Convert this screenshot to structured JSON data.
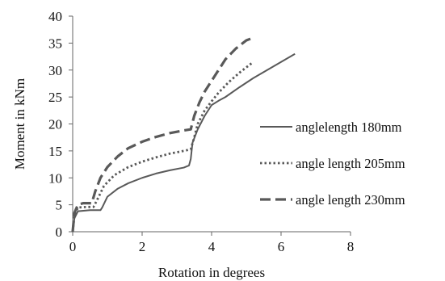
{
  "chart_data": {
    "type": "line",
    "title": "",
    "xlabel": "Rotation in degrees",
    "ylabel": "Moment in kNm",
    "xlim": [
      0,
      8
    ],
    "ylim": [
      0,
      40
    ],
    "xticks": [
      0,
      2,
      4,
      6,
      8
    ],
    "yticks": [
      0,
      5,
      10,
      15,
      20,
      25,
      30,
      35,
      40
    ],
    "grid": false,
    "legend": "right",
    "series": [
      {
        "name": "anglelength 180mm",
        "style": "solid",
        "color": "#595959",
        "x": [
          0,
          0.05,
          0.15,
          0.5,
          0.8,
          0.85,
          1.0,
          1.3,
          1.6,
          2.0,
          2.4,
          2.8,
          3.2,
          3.35,
          3.4,
          3.45,
          3.6,
          3.8,
          4.0,
          4.2,
          4.4,
          4.8,
          5.2,
          5.6,
          6.0,
          6.4
        ],
        "y": [
          0,
          2.5,
          3.8,
          4.0,
          4.0,
          4.5,
          6.5,
          8.0,
          9.0,
          10.0,
          10.8,
          11.4,
          11.9,
          12.3,
          13.5,
          16.5,
          19.0,
          21.5,
          23.5,
          24.3,
          25.0,
          26.8,
          28.5,
          30.0,
          31.5,
          33.0
        ]
      },
      {
        "name": "angle length 205mm",
        "style": "dotted",
        "color": "#595959",
        "x": [
          0,
          0.05,
          0.15,
          0.4,
          0.6,
          0.75,
          0.9,
          1.2,
          1.6,
          2.0,
          2.4,
          2.8,
          3.2,
          3.4,
          3.5,
          3.6,
          3.8,
          4.0,
          4.2,
          4.5,
          4.8,
          5.2
        ],
        "y": [
          0,
          3.0,
          4.5,
          4.6,
          4.6,
          6.5,
          8.5,
          10.5,
          12.0,
          13.0,
          13.8,
          14.5,
          15.0,
          15.3,
          17.5,
          20.0,
          22.5,
          24.2,
          25.8,
          27.8,
          29.5,
          31.5
        ]
      },
      {
        "name": "angle length 230mm",
        "style": "dashed",
        "color": "#595959",
        "x": [
          0,
          0.05,
          0.15,
          0.3,
          0.55,
          0.65,
          0.8,
          1.0,
          1.3,
          1.6,
          2.0,
          2.4,
          2.8,
          3.2,
          3.4,
          3.5,
          3.65,
          3.8,
          4.0,
          4.2,
          4.4,
          4.7,
          5.0,
          5.2
        ],
        "y": [
          0,
          3.5,
          5.0,
          5.3,
          5.3,
          7.5,
          10.0,
          12.0,
          14.0,
          15.5,
          16.7,
          17.6,
          18.3,
          18.8,
          19.0,
          21.5,
          24.0,
          26.0,
          28.0,
          30.0,
          32.0,
          34.0,
          35.5,
          36.0
        ]
      }
    ]
  }
}
